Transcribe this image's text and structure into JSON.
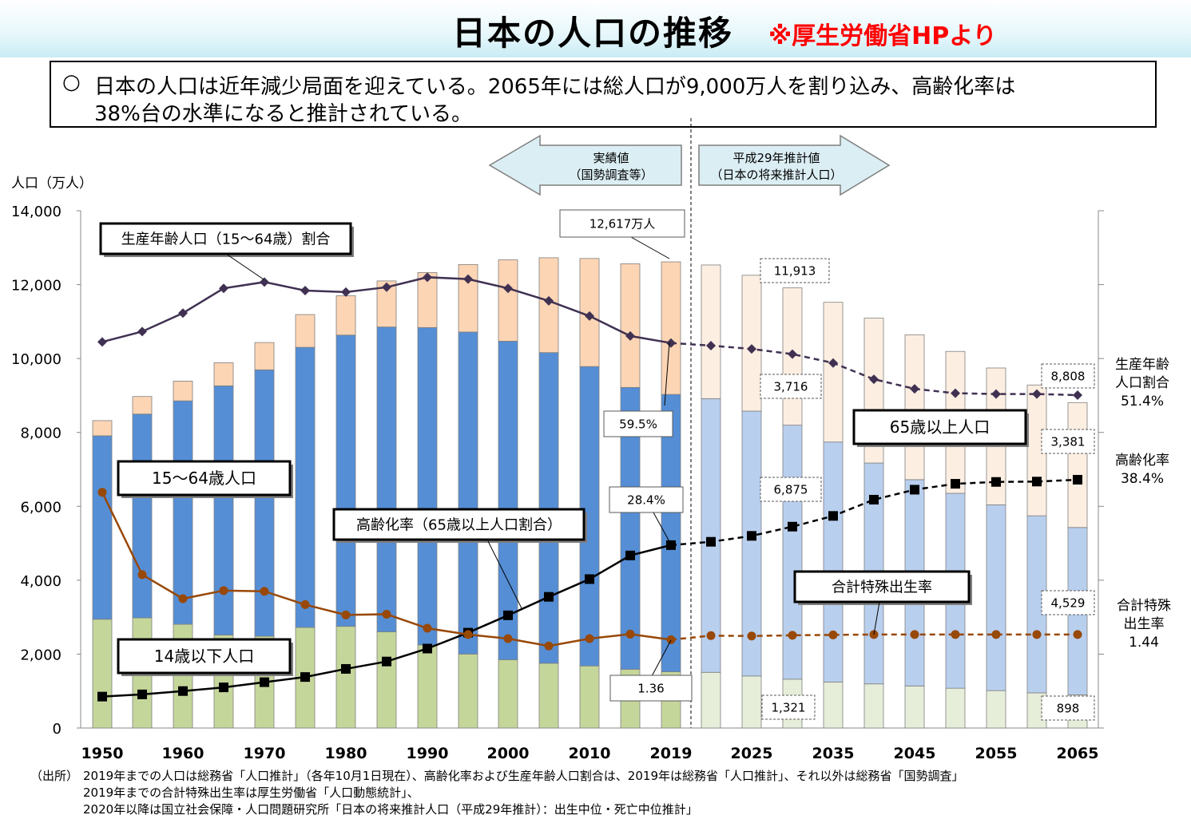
{
  "header": {
    "title": "日本の人口の推移",
    "source_note": "※厚生労働省HPより"
  },
  "summary": {
    "bullet": "○",
    "line1": "日本の人口は近年減少局面を迎えている。2065年には総人口が9,000万人を割り込み、高齢化率は",
    "line2": "38%台の水準になると推計されている。"
  },
  "chart_data": {
    "type": "bar",
    "stacked": true,
    "title": "日本の人口の推移",
    "ylabel": "人口（万人）",
    "ylim": [
      0,
      14000
    ],
    "yticks": [
      "0",
      "2,000",
      "4,000",
      "6,000",
      "8,000",
      "10,000",
      "12,000",
      "14,000"
    ],
    "categories": [
      "1950",
      "1955",
      "1960",
      "1965",
      "1970",
      "1975",
      "1980",
      "1985",
      "1990",
      "1995",
      "2000",
      "2005",
      "2010",
      "2015",
      "2019",
      "2020",
      "2025",
      "2030",
      "2035",
      "2040",
      "2045",
      "2050",
      "2055",
      "2060",
      "2065"
    ],
    "xtick_labels": [
      "1950",
      "1960",
      "1970",
      "1980",
      "1990",
      "2000",
      "2010",
      "2019",
      "2025",
      "2035",
      "2045",
      "2055",
      "2065"
    ],
    "projection_start_index": 15,
    "series": [
      {
        "name": "14歳以下人口",
        "color": "#c5d69b",
        "color_projected": "#e6eeda",
        "values": [
          2943,
          2980,
          2807,
          2517,
          2482,
          2722,
          2751,
          2603,
          2249,
          2001,
          1847,
          1752,
          1680,
          1589,
          1521,
          1507,
          1407,
          1321,
          1246,
          1194,
          1138,
          1077,
          1012,
          951,
          898
        ]
      },
      {
        "name": "15～64歳人口",
        "color": "#558ed5",
        "color_projected": "#b9cfee",
        "values": [
          4966,
          5517,
          6047,
          6744,
          7212,
          7581,
          7883,
          8251,
          8590,
          8716,
          8622,
          8409,
          8103,
          7629,
          7507,
          7406,
          7170,
          6875,
          6494,
          5978,
          5584,
          5275,
          5028,
          4793,
          4529
        ]
      },
      {
        "name": "65歳以上人口",
        "color": "#fcd5b5",
        "color_projected": "#fdeee2",
        "values": [
          411,
          475,
          535,
          624,
          739,
          887,
          1065,
          1247,
          1489,
          1826,
          2201,
          2567,
          2925,
          3347,
          3589,
          3619,
          3677,
          3716,
          3782,
          3921,
          3919,
          3841,
          3704,
          3540,
          3381
        ]
      }
    ],
    "line_series": [
      {
        "name": "生産年齢人口（15～64歳）割合",
        "color": "#403152",
        "marker": "diamond",
        "values": [
          10450,
          10730,
          11230,
          11900,
          12070,
          11840,
          11800,
          11930,
          12200,
          12150,
          11900,
          11560,
          11150,
          10610,
          10420,
          10350,
          10260,
          10120,
          9880,
          9440,
          9180,
          9060,
          9040,
          9040,
          9010
        ]
      },
      {
        "name": "高齢化率（65歳以上人口割合）",
        "color": "#000000",
        "marker": "square",
        "values": [
          850,
          910,
          1000,
          1100,
          1240,
          1380,
          1600,
          1800,
          2150,
          2580,
          3050,
          3550,
          4030,
          4670,
          4950,
          5040,
          5200,
          5450,
          5740,
          6180,
          6450,
          6610,
          6660,
          6670,
          6720
        ]
      },
      {
        "name": "合計特殊出生率",
        "color": "#984807",
        "marker": "circle",
        "values": [
          6380,
          4150,
          3500,
          3720,
          3700,
          3340,
          3060,
          3080,
          2700,
          2530,
          2420,
          2220,
          2420,
          2540,
          2390,
          2500,
          2490,
          2510,
          2520,
          2530,
          2530,
          2530,
          2530,
          2530,
          2530
        ]
      }
    ],
    "series_labels": {
      "births": "14歳以下人口",
      "working": "15～64歳人口",
      "elderly": "65歳以上人口",
      "working_ratio": "生産年齢人口（15～64歳）割合",
      "aging_rate": "高齢化率（65歳以上人口割合）",
      "fertility": "合計特殊出生率"
    },
    "arrows": {
      "actual": [
        "実績値",
        "（国勢調査等）"
      ],
      "projected": [
        "平成29年推計値",
        "（日本の将来推計人口）"
      ]
    },
    "callouts": {
      "total_2019": "12,617万人",
      "ratio_2019": "59.5%",
      "aging_2019": "28.4%",
      "fertility_2019": "1.36",
      "total_2030": "11,913",
      "elderly_2030": "3,716",
      "working_2030": "6,875",
      "children_2030": "1,321",
      "total_2065": "8,808",
      "elderly_2065": "3,381",
      "working_2065": "4,529",
      "children_2065": "898"
    },
    "right_labels": {
      "working_ratio": [
        "生産年齢",
        "人口割合",
        "51.4%"
      ],
      "aging_rate": [
        "高齢化率",
        "38.4%"
      ],
      "fertility": [
        "合計特殊",
        "出生率",
        "1.44"
      ]
    }
  },
  "footnote": {
    "label": "（出所）",
    "lines": [
      "2019年までの人口は総務省「人口推計」（各年10月1日現在）、高齢化率および生産年齢人口割合は、2019年は総務省「人口推計」、それ以外は総務省「国勢調査」",
      "2019年までの合計特殊出生率は厚生労働省「人口動態統計」、",
      "2020年以降は国立社会保障・人口問題研究所「日本の将来推計人口（平成29年推計）：出生中位・死亡中位推計」"
    ]
  }
}
